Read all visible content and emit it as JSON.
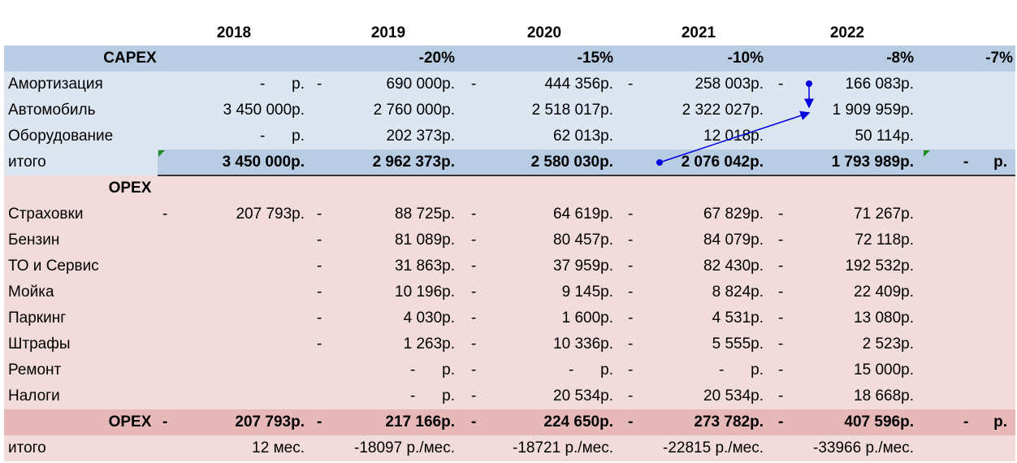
{
  "table": {
    "years": [
      "2018",
      "2019",
      "2020",
      "2021",
      "2022"
    ],
    "rows": [
      {
        "cells": [
          "CAPEX",
          null,
          null,
          null,
          "-20%",
          null,
          "-15%",
          null,
          "-10%",
          null,
          "-8%",
          null,
          "-7%"
        ]
      },
      {
        "cells": [
          "Амортизация",
          null,
          [
            "-",
            "р."
          ],
          "-",
          "690 000р.",
          "-",
          "444 356р.",
          "-",
          "258 003р.",
          "-",
          "166 083р.",
          null,
          null
        ]
      },
      {
        "cells": [
          "Автомобиль",
          null,
          "3 450 000р.",
          null,
          "2 760 000р.",
          null,
          "2 518 017р.",
          null,
          "2 322 027р.",
          null,
          "1 909 959р.",
          null,
          null
        ]
      },
      {
        "cells": [
          "Оборудование",
          null,
          [
            "-",
            "р."
          ],
          null,
          "202 373р.",
          null,
          "62 013р.",
          null,
          "12 018р.",
          null,
          "50 114р.",
          null,
          null
        ]
      },
      {
        "cells": [
          "итого",
          null,
          "3 450 000р.",
          null,
          "2 962 373р.",
          null,
          "2 580 030р.",
          null,
          "2 076 042р.",
          null,
          "1 793 989р.",
          "-",
          "р."
        ]
      },
      {
        "cells": [
          "OPEX",
          null,
          null,
          null,
          null,
          null,
          null,
          null,
          null,
          null,
          null,
          null,
          null
        ]
      },
      {
        "cells": [
          "Страховки",
          "-",
          "207 793р.",
          "-",
          "88 725р.",
          "-",
          "64 619р.",
          "-",
          "67 829р.",
          "-",
          "71 267р.",
          null,
          null
        ]
      },
      {
        "cells": [
          "Бензин",
          null,
          null,
          "-",
          "81 089р.",
          "-",
          "80 457р.",
          "-",
          "84 079р.",
          "-",
          "72 118р.",
          null,
          null
        ]
      },
      {
        "cells": [
          "ТО и Сервис",
          null,
          null,
          "-",
          "31 863р.",
          "-",
          "37 959р.",
          "-",
          "82 430р.",
          "-",
          "192 532р.",
          null,
          null
        ]
      },
      {
        "cells": [
          "Мойка",
          null,
          null,
          "-",
          "10 196р.",
          "-",
          "9 145р.",
          "-",
          "8 824р.",
          "-",
          "22 409р.",
          null,
          null
        ]
      },
      {
        "cells": [
          "Паркинг",
          null,
          null,
          "-",
          "4 030р.",
          "-",
          "1 600р.",
          "-",
          "4 531р.",
          "-",
          "13 080р.",
          null,
          null
        ]
      },
      {
        "cells": [
          "Штрафы",
          null,
          null,
          "-",
          "1 263р.",
          "-",
          "10 336р.",
          "-",
          "5 555р.",
          "-",
          "2 523р.",
          null,
          null
        ]
      },
      {
        "cells": [
          "Ремонт",
          null,
          null,
          null,
          [
            "-",
            "р."
          ],
          "-",
          [
            "-",
            "р."
          ],
          "-",
          [
            "-",
            "р."
          ],
          "-",
          "15 000р.",
          null,
          null
        ]
      },
      {
        "cells": [
          "Налоги",
          null,
          null,
          null,
          [
            "-",
            "р."
          ],
          "-",
          "20 534р.",
          "-",
          "20 534р.",
          "-",
          "18 668р.",
          null,
          null
        ]
      },
      {
        "cells": [
          "OPEX",
          "-",
          "207 793р.",
          "-",
          "217 166р.",
          "-",
          "224 650р.",
          "-",
          "273 782р.",
          "-",
          "407 596р.",
          "-",
          "р."
        ]
      },
      {
        "cells": [
          "итого",
          null,
          "12 мес.",
          null,
          "-18097 р./мес.",
          null,
          "-18721 р./мес.",
          null,
          "-22815 р./мес.",
          null,
          "-33966 р./мес.",
          null,
          null
        ]
      }
    ]
  }
}
